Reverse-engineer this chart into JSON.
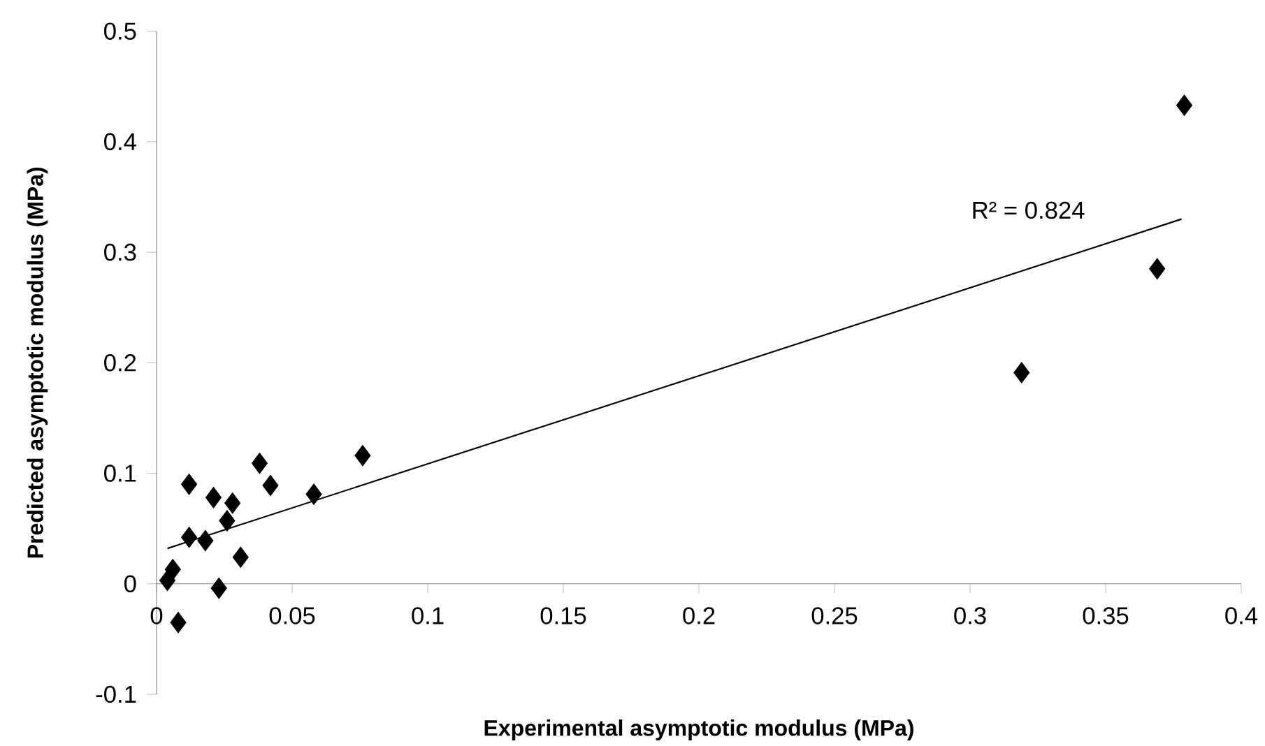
{
  "chart_data": {
    "type": "scatter",
    "xlabel": "Experimental asymptotic modulus (MPa)",
    "ylabel": "Predicted asymptotic modulus (MPa)",
    "xlim": [
      0,
      0.4
    ],
    "xticks": [
      0,
      0.05,
      0.1,
      0.15,
      0.2,
      0.25,
      0.3,
      0.35,
      0.4
    ],
    "ylim": [
      -0.1,
      0.5
    ],
    "yticks": [
      -0.1,
      0,
      0.1,
      0.2,
      0.3,
      0.4,
      0.5
    ],
    "grid": false,
    "marker": "diamond",
    "series": [
      {
        "color": "#000000",
        "x": [
          0.006,
          0.004,
          0.008,
          0.012,
          0.012,
          0.021,
          0.018,
          0.028,
          0.026,
          0.023,
          0.031,
          0.038,
          0.042,
          0.058,
          0.076,
          0.319,
          0.369,
          0.379
        ],
        "values": [
          0.013,
          0.003,
          -0.035,
          0.042,
          0.09,
          0.078,
          0.039,
          0.073,
          0.057,
          -0.004,
          0.024,
          0.109,
          0.089,
          0.081,
          0.116,
          0.191,
          0.285,
          0.433
        ]
      },
      {
        "type": "line",
        "color": "#000000",
        "marker": "none",
        "x": [
          0.004,
          0.378
        ],
        "values": [
          0.032,
          0.33
        ]
      }
    ],
    "annotations": [
      "R² = 0.824"
    ]
  }
}
